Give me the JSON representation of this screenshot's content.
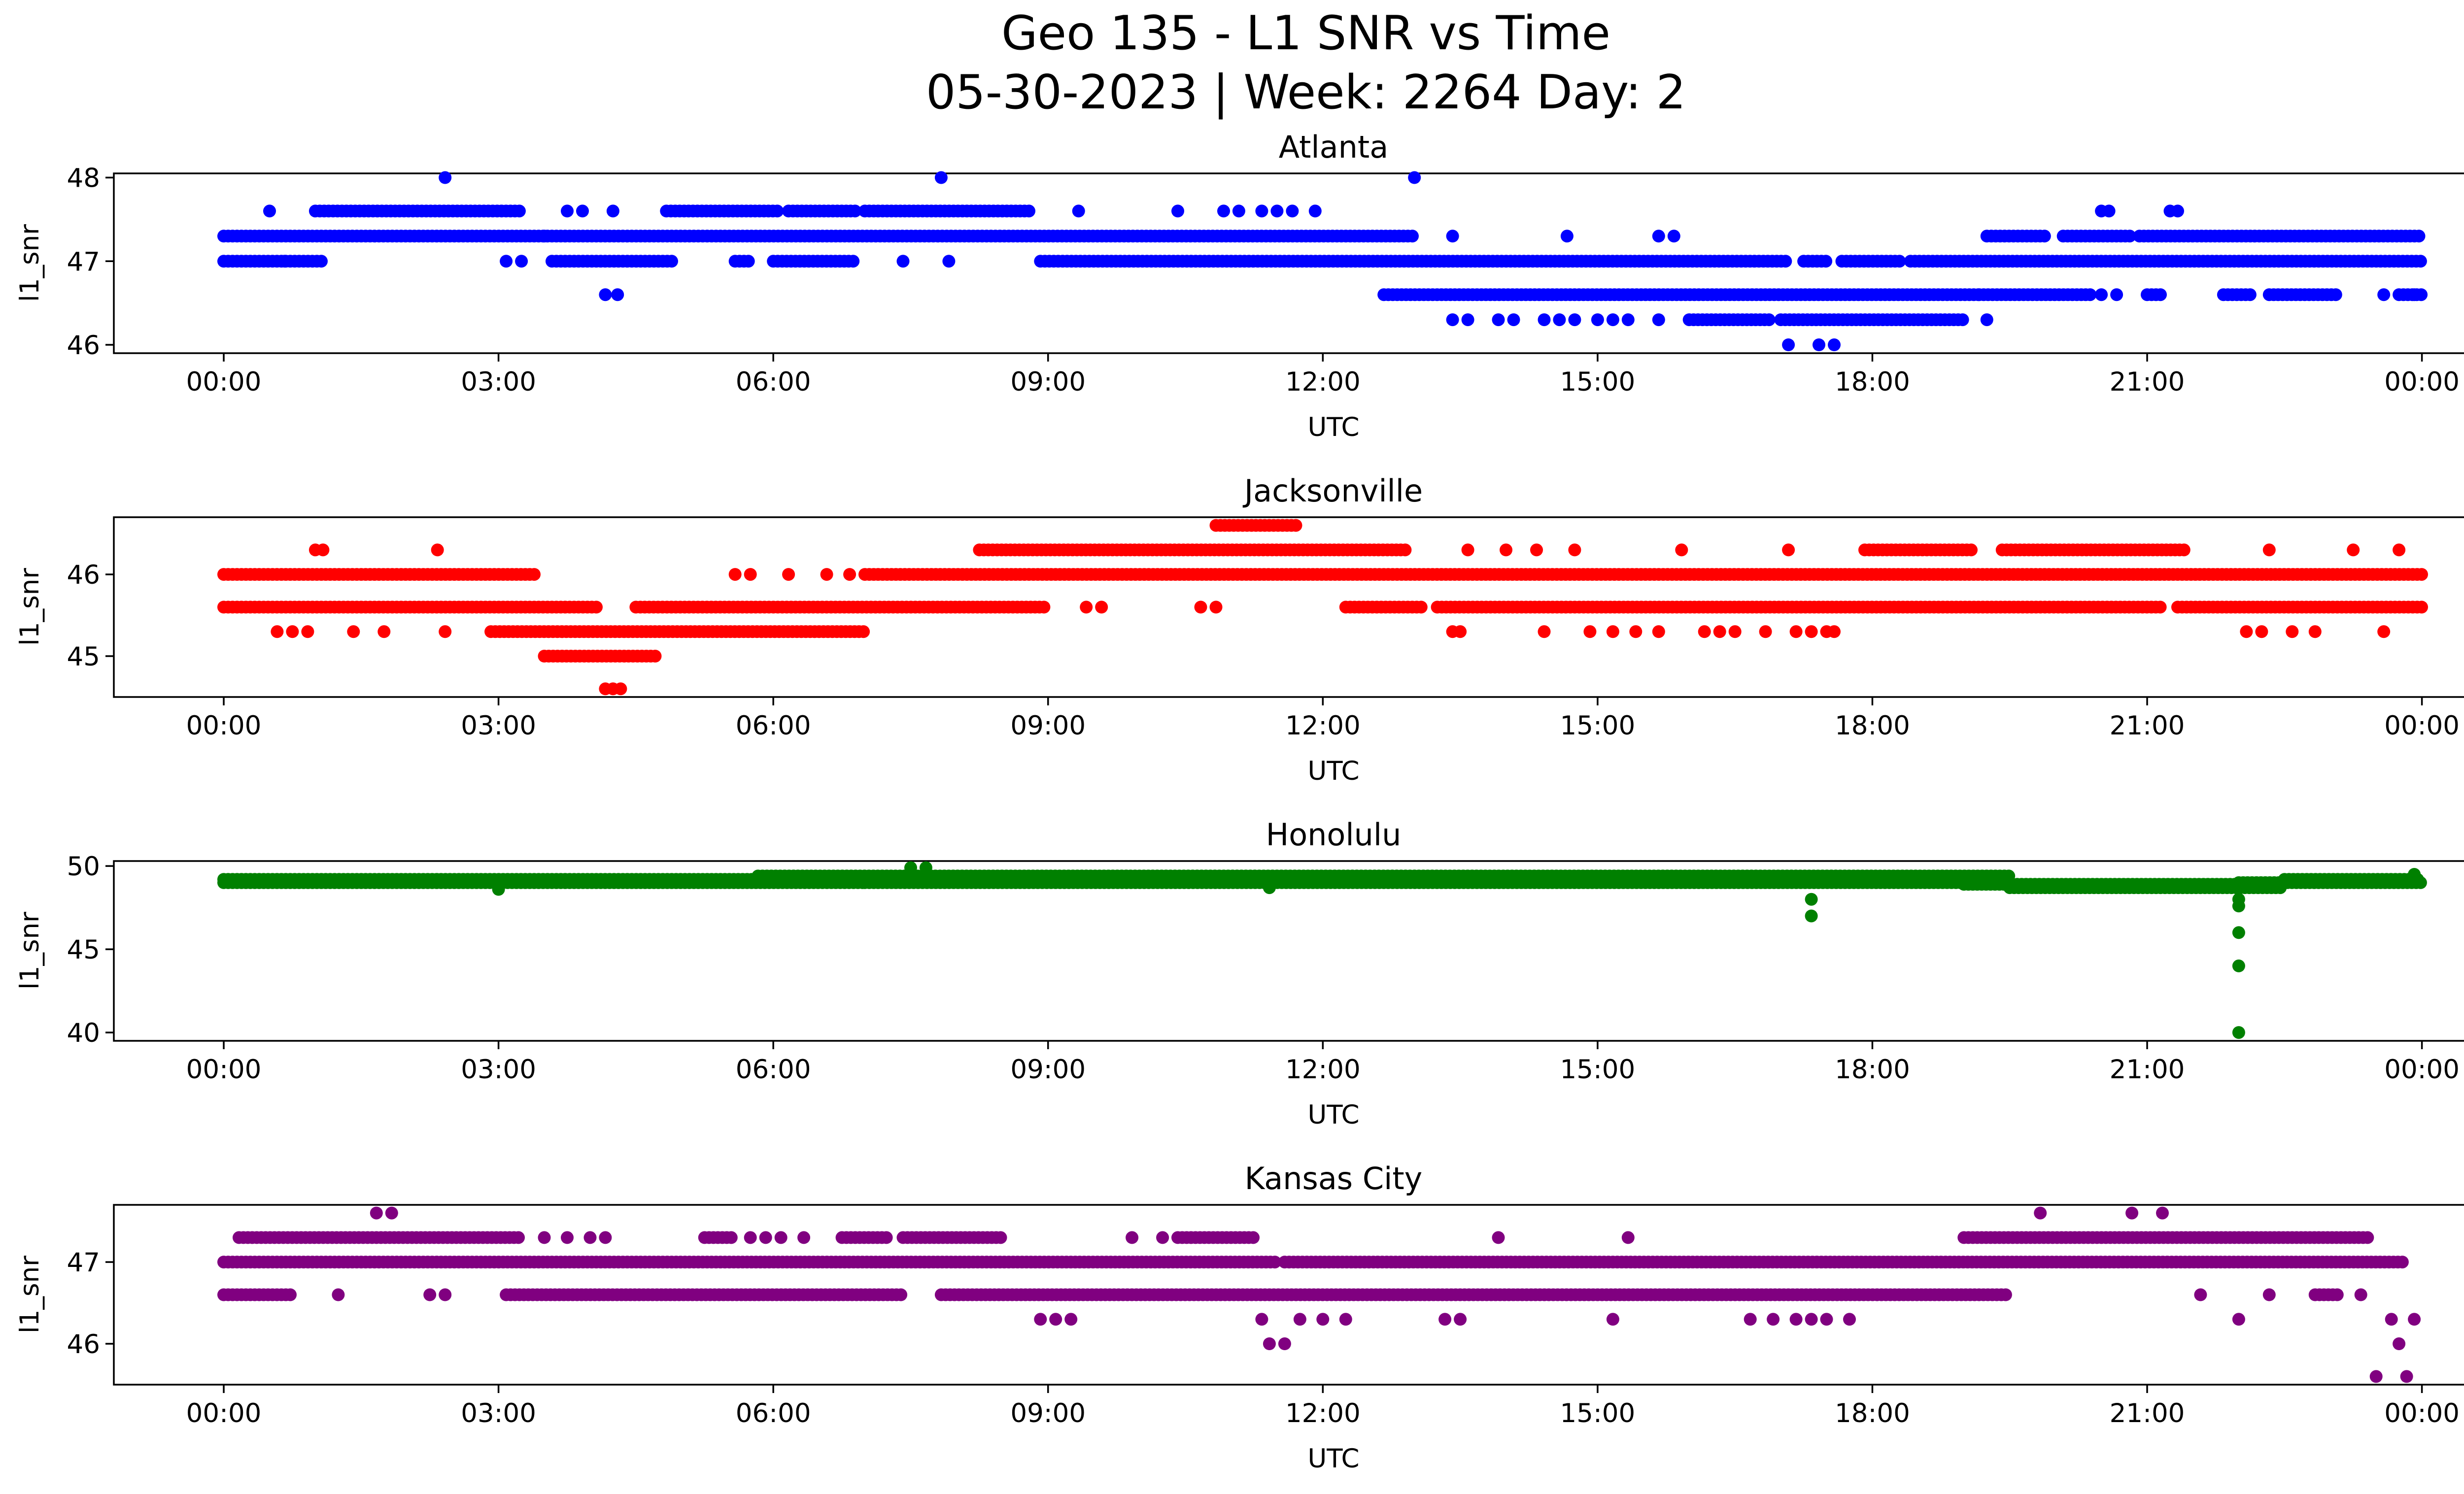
{
  "figure": {
    "title_line1": "Geo 135 - L1 SNR vs Time",
    "title_line2": "05-30-2023 | Week: 2264 Day: 2"
  },
  "chart_data": [
    {
      "type": "scatter",
      "title": "Atlanta",
      "xlabel": "UTC",
      "ylabel": "l1_snr",
      "color": "#0000ff",
      "xlim": [
        "2023-05-29T22:48",
        "2023-05-31T01:26"
      ],
      "ylim": [
        45.9,
        48.05
      ],
      "x_ticks": [
        "00:00",
        "03:00",
        "06:00",
        "09:00",
        "12:00",
        "15:00",
        "18:00",
        "21:00",
        "00:00"
      ],
      "y_ticks": [
        46,
        47,
        48
      ],
      "bands": [
        {
          "y": 47.3,
          "from": "00:00",
          "to": "13:00"
        },
        {
          "y": 47.0,
          "from": "00:00",
          "to": "01:05"
        },
        {
          "y": 47.6,
          "from": "01:00",
          "to": "03:15"
        },
        {
          "y": 47.0,
          "from": "03:35",
          "to": "04:55"
        },
        {
          "y": 47.6,
          "from": "04:50",
          "to": "06:05"
        },
        {
          "y": 47.0,
          "from": "05:35",
          "to": "05:45"
        },
        {
          "y": 47.0,
          "from": "06:00",
          "to": "06:55"
        },
        {
          "y": 47.6,
          "from": "06:10",
          "to": "06:55"
        },
        {
          "y": 47.6,
          "from": "07:00",
          "to": "08:50"
        },
        {
          "y": 47.0,
          "from": "08:55",
          "to": "17:05"
        },
        {
          "y": 46.6,
          "from": "12:40",
          "to": "19:10"
        },
        {
          "y": 47.0,
          "from": "17:15",
          "to": "17:30"
        },
        {
          "y": 47.0,
          "from": "17:40",
          "to": "18:20"
        },
        {
          "y": 46.3,
          "from": "17:00",
          "to": "19:00"
        },
        {
          "y": 46.3,
          "from": "16:00",
          "to": "16:55"
        },
        {
          "y": 47.0,
          "from": "18:25",
          "to": "24:00"
        },
        {
          "y": 47.3,
          "from": "19:15",
          "to": "19:55"
        },
        {
          "y": 47.3,
          "from": "20:05",
          "to": "20:50"
        },
        {
          "y": 47.3,
          "from": "20:55",
          "to": "24:00"
        },
        {
          "y": 46.6,
          "from": "19:10",
          "to": "20:25"
        },
        {
          "y": 46.6,
          "from": "21:00",
          "to": "21:10"
        },
        {
          "y": 46.6,
          "from": "21:50",
          "to": "22:10"
        },
        {
          "y": 46.6,
          "from": "22:20",
          "to": "23:05"
        },
        {
          "y": 46.6,
          "from": "23:45",
          "to": "24:00"
        }
      ],
      "points": [
        [
          "00:30",
          47.6
        ],
        [
          "00:40",
          47.0
        ],
        [
          "02:25",
          48.0
        ],
        [
          "03:05",
          47.0
        ],
        [
          "03:15",
          47.0
        ],
        [
          "03:30",
          47.3
        ],
        [
          "03:45",
          47.6
        ],
        [
          "03:55",
          47.6
        ],
        [
          "04:15",
          47.6
        ],
        [
          "04:10",
          46.6
        ],
        [
          "04:18",
          46.6
        ],
        [
          "07:25",
          47.0
        ],
        [
          "07:50",
          48.0
        ],
        [
          "07:55",
          47.0
        ],
        [
          "09:20",
          47.6
        ],
        [
          "10:25",
          47.6
        ],
        [
          "10:55",
          47.6
        ],
        [
          "11:05",
          47.6
        ],
        [
          "11:20",
          47.6
        ],
        [
          "11:30",
          47.6
        ],
        [
          "11:40",
          47.6
        ],
        [
          "11:55",
          47.6
        ],
        [
          "13:00",
          48.0
        ],
        [
          "13:25",
          47.3
        ],
        [
          "13:25",
          46.3
        ],
        [
          "13:35",
          46.3
        ],
        [
          "13:55",
          46.3
        ],
        [
          "14:05",
          46.3
        ],
        [
          "14:25",
          46.3
        ],
        [
          "14:35",
          46.3
        ],
        [
          "14:45",
          46.3
        ],
        [
          "15:00",
          46.3
        ],
        [
          "15:10",
          46.3
        ],
        [
          "15:20",
          46.3
        ],
        [
          "15:40",
          46.3
        ],
        [
          "14:40",
          47.3
        ],
        [
          "15:40",
          47.3
        ],
        [
          "15:50",
          47.3
        ],
        [
          "17:05",
          46.0
        ],
        [
          "17:25",
          46.0
        ],
        [
          "17:35",
          46.0
        ],
        [
          "19:15",
          46.3
        ],
        [
          "20:30",
          47.6
        ],
        [
          "20:35",
          47.6
        ],
        [
          "21:15",
          47.6
        ],
        [
          "21:20",
          47.6
        ],
        [
          "20:30",
          46.6
        ],
        [
          "20:40",
          46.6
        ],
        [
          "23:35",
          46.6
        ],
        [
          "23:55",
          46.6
        ]
      ]
    },
    {
      "type": "scatter",
      "title": "Jacksonville",
      "xlabel": "UTC",
      "ylabel": "l1_snr",
      "color": "#ff0000",
      "xlim": [
        "2023-05-29T22:48",
        "2023-05-31T01:26"
      ],
      "ylim": [
        44.5,
        46.7
      ],
      "x_ticks": [
        "00:00",
        "03:00",
        "06:00",
        "09:00",
        "12:00",
        "15:00",
        "18:00",
        "21:00",
        "00:00"
      ],
      "y_ticks": [
        45,
        46
      ],
      "bands": [
        {
          "y": 46.0,
          "from": "00:00",
          "to": "03:25"
        },
        {
          "y": 45.6,
          "from": "00:00",
          "to": "04:05"
        },
        {
          "y": 45.3,
          "from": "02:55",
          "to": "07:00"
        },
        {
          "y": 45.0,
          "from": "03:30",
          "to": "04:45"
        },
        {
          "y": 45.6,
          "from": "04:30",
          "to": "09:00"
        },
        {
          "y": 46.0,
          "from": "07:00",
          "to": "24:00"
        },
        {
          "y": 46.3,
          "from": "08:15",
          "to": "12:55"
        },
        {
          "y": 46.6,
          "from": "10:50",
          "to": "11:45"
        },
        {
          "y": 45.6,
          "from": "12:15",
          "to": "13:05"
        },
        {
          "y": 45.6,
          "from": "13:15",
          "to": "21:10"
        },
        {
          "y": 46.3,
          "from": "17:55",
          "to": "19:05"
        },
        {
          "y": 46.3,
          "from": "19:25",
          "to": "21:25"
        },
        {
          "y": 45.6,
          "from": "21:20",
          "to": "24:00"
        }
      ],
      "points": [
        [
          "00:35",
          45.3
        ],
        [
          "00:45",
          45.3
        ],
        [
          "00:55",
          45.3
        ],
        [
          "01:00",
          46.3
        ],
        [
          "01:05",
          46.3
        ],
        [
          "01:25",
          45.3
        ],
        [
          "01:45",
          45.3
        ],
        [
          "02:20",
          46.3
        ],
        [
          "02:25",
          45.3
        ],
        [
          "04:10",
          44.6
        ],
        [
          "04:15",
          44.6
        ],
        [
          "04:20",
          44.6
        ],
        [
          "05:35",
          46.0
        ],
        [
          "05:45",
          46.0
        ],
        [
          "06:10",
          46.0
        ],
        [
          "06:35",
          46.0
        ],
        [
          "06:50",
          46.0
        ],
        [
          "09:25",
          45.6
        ],
        [
          "09:35",
          45.6
        ],
        [
          "10:40",
          45.6
        ],
        [
          "10:50",
          45.6
        ],
        [
          "13:25",
          45.3
        ],
        [
          "13:30",
          45.3
        ],
        [
          "13:35",
          46.3
        ],
        [
          "14:00",
          46.3
        ],
        [
          "14:20",
          46.3
        ],
        [
          "14:25",
          45.3
        ],
        [
          "14:45",
          46.3
        ],
        [
          "14:55",
          45.3
        ],
        [
          "15:10",
          45.3
        ],
        [
          "15:25",
          45.3
        ],
        [
          "15:40",
          45.3
        ],
        [
          "15:55",
          46.3
        ],
        [
          "16:10",
          45.3
        ],
        [
          "16:20",
          45.3
        ],
        [
          "16:30",
          45.3
        ],
        [
          "16:50",
          45.3
        ],
        [
          "17:05",
          46.3
        ],
        [
          "17:10",
          45.3
        ],
        [
          "17:20",
          45.3
        ],
        [
          "17:30",
          45.3
        ],
        [
          "17:35",
          45.3
        ],
        [
          "22:05",
          45.3
        ],
        [
          "22:15",
          45.3
        ],
        [
          "22:20",
          46.3
        ],
        [
          "22:35",
          45.3
        ],
        [
          "22:50",
          45.3
        ],
        [
          "23:15",
          46.3
        ],
        [
          "23:35",
          45.3
        ],
        [
          "23:45",
          46.3
        ]
      ]
    },
    {
      "type": "scatter",
      "title": "Honolulu",
      "xlabel": "UTC",
      "ylabel": "l1_snr",
      "color": "#008000",
      "xlim": [
        "2023-05-29T22:48",
        "2023-05-31T01:26"
      ],
      "ylim": [
        39.5,
        50.3
      ],
      "x_ticks": [
        "00:00",
        "03:00",
        "06:00",
        "09:00",
        "12:00",
        "15:00",
        "18:00",
        "21:00",
        "00:00"
      ],
      "y_ticks": [
        40,
        45,
        50
      ],
      "bands": [
        {
          "y": 49.0,
          "from": "00:00",
          "to": "07:00"
        },
        {
          "y": 49.2,
          "from": "00:00",
          "to": "12:00"
        },
        {
          "y": 49.4,
          "from": "05:50",
          "to": "19:30"
        },
        {
          "y": 49.0,
          "from": "07:00",
          "to": "19:00"
        },
        {
          "y": 48.9,
          "from": "19:00",
          "to": "22:00"
        },
        {
          "y": 48.7,
          "from": "19:30",
          "to": "22:30"
        },
        {
          "y": 49.0,
          "from": "22:00",
          "to": "24:00"
        },
        {
          "y": 49.2,
          "from": "22:30",
          "to": "24:00"
        }
      ],
      "points": [
        [
          "03:00",
          48.6
        ],
        [
          "07:30",
          49.9
        ],
        [
          "07:40",
          49.9
        ],
        [
          "11:25",
          48.7
        ],
        [
          "17:20",
          48.0
        ],
        [
          "17:20",
          47.0
        ],
        [
          "22:00",
          48.0
        ],
        [
          "22:00",
          47.6
        ],
        [
          "22:00",
          46.0
        ],
        [
          "22:00",
          44.0
        ],
        [
          "22:00",
          40.0
        ],
        [
          "23:55",
          49.5
        ]
      ]
    },
    {
      "type": "scatter",
      "title": "Kansas City",
      "xlabel": "UTC",
      "ylabel": "l1_snr",
      "color": "#800080",
      "xlim": [
        "2023-05-29T22:48",
        "2023-05-31T01:26"
      ],
      "ylim": [
        45.5,
        47.7
      ],
      "x_ticks": [
        "00:00",
        "03:00",
        "06:00",
        "09:00",
        "12:00",
        "15:00",
        "18:00",
        "21:00",
        "00:00"
      ],
      "y_ticks": [
        46,
        47
      ],
      "bands": [
        {
          "y": 47.0,
          "from": "00:00",
          "to": "11:30"
        },
        {
          "y": 47.0,
          "from": "11:35",
          "to": "23:50"
        },
        {
          "y": 46.6,
          "from": "00:00",
          "to": "00:45"
        },
        {
          "y": 47.3,
          "from": "00:10",
          "to": "03:15"
        },
        {
          "y": 46.6,
          "from": "03:05",
          "to": "07:25"
        },
        {
          "y": 47.3,
          "from": "05:15",
          "to": "05:35"
        },
        {
          "y": 47.3,
          "from": "06:45",
          "to": "07:15"
        },
        {
          "y": 47.3,
          "from": "07:25",
          "to": "08:30"
        },
        {
          "y": 46.6,
          "from": "07:50",
          "to": "19:30"
        },
        {
          "y": 47.3,
          "from": "10:25",
          "to": "11:15"
        },
        {
          "y": 47.3,
          "from": "19:00",
          "to": "23:25"
        },
        {
          "y": 46.6,
          "from": "22:50",
          "to": "23:05"
        }
      ],
      "points": [
        [
          "01:15",
          46.6
        ],
        [
          "01:40",
          47.6
        ],
        [
          "01:50",
          47.6
        ],
        [
          "02:15",
          46.6
        ],
        [
          "02:25",
          46.6
        ],
        [
          "03:30",
          47.3
        ],
        [
          "03:45",
          47.3
        ],
        [
          "04:00",
          47.3
        ],
        [
          "04:10",
          47.3
        ],
        [
          "05:45",
          47.3
        ],
        [
          "05:55",
          47.3
        ],
        [
          "06:05",
          47.3
        ],
        [
          "06:20",
          47.3
        ],
        [
          "08:55",
          46.3
        ],
        [
          "09:05",
          46.3
        ],
        [
          "09:15",
          46.3
        ],
        [
          "09:55",
          47.3
        ],
        [
          "10:15",
          47.3
        ],
        [
          "11:20",
          46.3
        ],
        [
          "11:25",
          46.0
        ],
        [
          "11:35",
          46.0
        ],
        [
          "11:45",
          46.3
        ],
        [
          "12:00",
          46.3
        ],
        [
          "12:15",
          46.3
        ],
        [
          "13:20",
          46.3
        ],
        [
          "13:30",
          46.3
        ],
        [
          "13:55",
          47.3
        ],
        [
          "15:10",
          46.3
        ],
        [
          "15:20",
          47.3
        ],
        [
          "16:40",
          46.3
        ],
        [
          "16:55",
          46.3
        ],
        [
          "17:10",
          46.3
        ],
        [
          "17:20",
          46.3
        ],
        [
          "17:30",
          46.3
        ],
        [
          "17:45",
          46.3
        ],
        [
          "19:50",
          47.6
        ],
        [
          "20:50",
          47.6
        ],
        [
          "21:10",
          47.6
        ],
        [
          "21:35",
          46.6
        ],
        [
          "22:00",
          46.3
        ],
        [
          "22:20",
          46.6
        ],
        [
          "23:20",
          46.6
        ],
        [
          "23:30",
          45.6
        ],
        [
          "23:40",
          46.3
        ],
        [
          "23:45",
          46.0
        ],
        [
          "23:50",
          45.6
        ],
        [
          "23:55",
          46.3
        ]
      ]
    }
  ]
}
